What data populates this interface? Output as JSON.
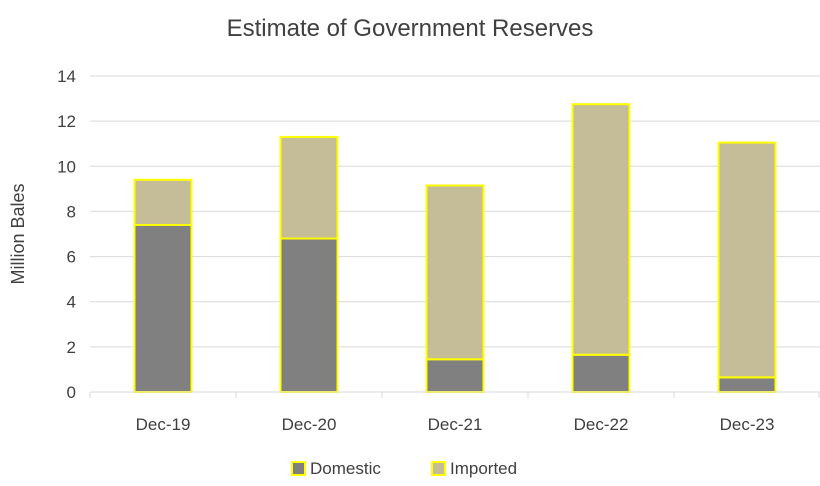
{
  "chart_data": {
    "type": "bar",
    "stacked": true,
    "title": "Estimate of Government Reserves",
    "xlabel": "",
    "ylabel": "Million Bales",
    "categories": [
      "Dec-19",
      "Dec-20",
      "Dec-21",
      "Dec-22",
      "Dec-23"
    ],
    "series": [
      {
        "name": "Domestic",
        "values": [
          7.4,
          6.8,
          1.45,
          1.65,
          0.65
        ],
        "color": "#808080"
      },
      {
        "name": "Imported",
        "values": [
          2.0,
          4.5,
          7.7,
          11.1,
          10.4
        ],
        "color": "#c4bd97"
      }
    ],
    "ylim": [
      0,
      14
    ],
    "yticks": [
      0,
      2,
      4,
      6,
      8,
      10,
      12,
      14
    ],
    "grid": true,
    "legend": "bottom",
    "bar_outline_color": "#ffff00",
    "gridline_color": "#d9d9d9",
    "text_color": "#404040"
  }
}
